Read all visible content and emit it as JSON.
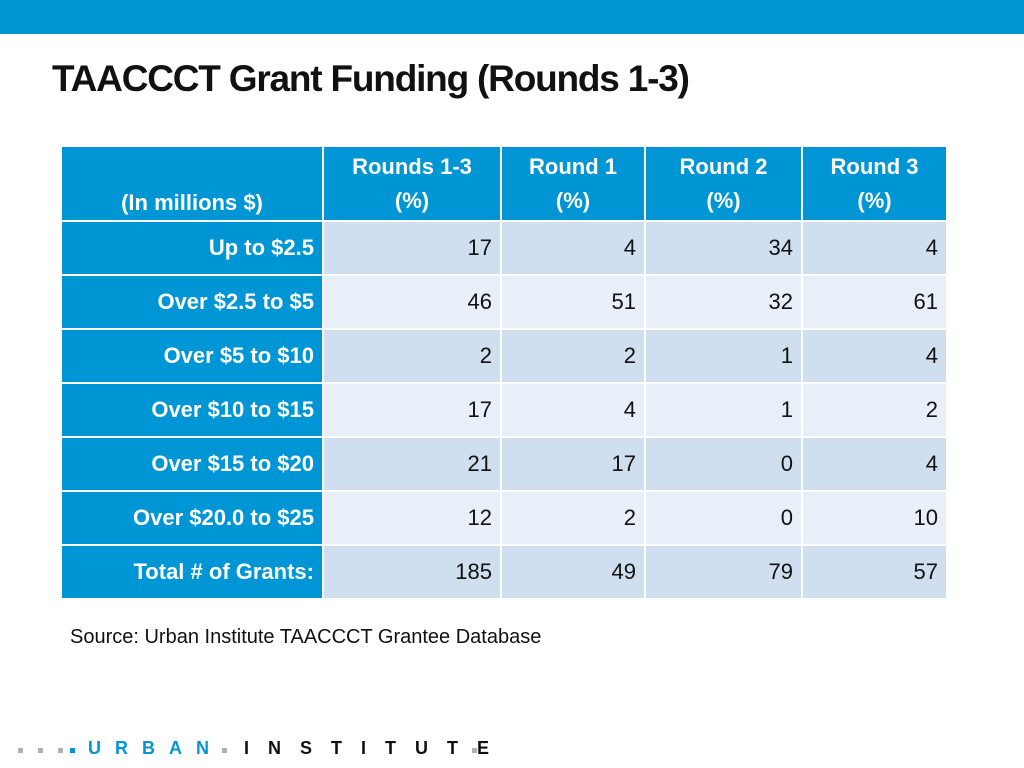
{
  "title": "TAACCCT Grant Funding (Rounds 1-3)",
  "table": {
    "corner_label": "(In millions $)",
    "columns": [
      {
        "line1": "Rounds 1-3",
        "line2": "(%)"
      },
      {
        "line1": "Round 1",
        "line2": "(%)"
      },
      {
        "line1": "Round 2",
        "line2": "(%)"
      },
      {
        "line1": "Round 3",
        "line2": "(%)"
      }
    ],
    "rows": [
      {
        "label": "Up to $2.5",
        "values": [
          "17",
          "4",
          "34",
          "4"
        ]
      },
      {
        "label": "Over $2.5 to $5",
        "values": [
          "46",
          "51",
          "32",
          "61"
        ]
      },
      {
        "label": "Over $5 to $10",
        "values": [
          "2",
          "2",
          "1",
          "4"
        ]
      },
      {
        "label": "Over $10 to $15",
        "values": [
          "17",
          "4",
          "1",
          "2"
        ]
      },
      {
        "label": "Over $15 to $20",
        "values": [
          "21",
          "17",
          "0",
          "4"
        ]
      },
      {
        "label": "Over $20.0 to $25",
        "values": [
          "12",
          "2",
          "0",
          "10"
        ]
      },
      {
        "label": "Total # of Grants:",
        "values": [
          "185",
          "49",
          "79",
          "57"
        ]
      }
    ]
  },
  "source": "Source: Urban Institute TAACCCT Grantee Database",
  "logo": {
    "word1": "URBAN",
    "word2": "INSTITUTE"
  },
  "colors": {
    "accent": "#0096d6",
    "row_dark": "#cfdfef",
    "row_light": "#e8eff8"
  }
}
